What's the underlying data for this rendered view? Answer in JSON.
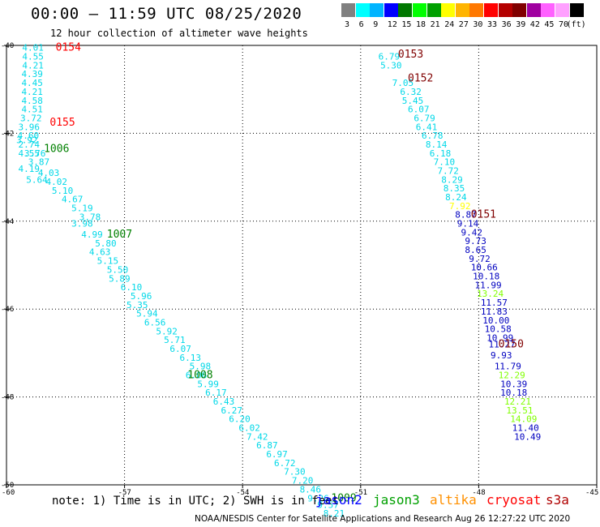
{
  "title": "00:00 – 11:59 UTC 08/25/2020",
  "subtitle": "12 hour collection of altimeter wave heights",
  "legend": {
    "colors": [
      "#808080",
      "#00ffff",
      "#00b4ff",
      "#0000ff",
      "#007800",
      "#00ff00",
      "#00a000",
      "#ffff00",
      "#ffb400",
      "#ff7800",
      "#ff0000",
      "#b40000",
      "#800000",
      "#a000a0",
      "#ff60ff",
      "#ffa0ff",
      "#000000"
    ],
    "labels": [
      "3",
      "6",
      "9",
      "12",
      "15",
      "18",
      "21",
      "24",
      "27",
      "30",
      "33",
      "36",
      "39",
      "42",
      "45",
      "70",
      "(ft)"
    ]
  },
  "chart_data": {
    "type": "scatter",
    "xlim": [
      -60,
      -45
    ],
    "ylim": [
      -50,
      -40
    ],
    "x_ticks": [
      "-60",
      "-57",
      "-54",
      "-51",
      "-48",
      "-45"
    ],
    "y_ticks": [
      "-40",
      "-42",
      "-44",
      "-46",
      "-48",
      "-50"
    ],
    "grid": true,
    "tracks": [
      {
        "points": [
          {
            "x": -59.6,
            "y": -40.05,
            "v": "4.01"
          },
          {
            "x": -59.6,
            "y": -40.25,
            "v": "4.55"
          },
          {
            "x": -59.6,
            "y": -40.45,
            "v": "4.21"
          },
          {
            "x": -59.62,
            "y": -40.65,
            "v": "4.39"
          },
          {
            "x": -59.62,
            "y": -40.85,
            "v": "4.45"
          },
          {
            "x": -59.62,
            "y": -41.05,
            "v": "4.21"
          },
          {
            "x": -59.62,
            "y": -41.25,
            "v": "4.58"
          },
          {
            "x": -59.62,
            "y": -41.45,
            "v": "4.51"
          },
          {
            "x": -59.65,
            "y": -41.65,
            "v": "3.72"
          },
          {
            "x": -59.7,
            "y": -41.85,
            "v": "3.96"
          },
          {
            "x": -59.72,
            "y": -42.05,
            "v": "4.60"
          },
          {
            "x": -59.75,
            "y": -42.15,
            "v": "3.92"
          },
          {
            "x": -59.7,
            "y": -42.25,
            "v": "2.74"
          },
          {
            "x": -59.7,
            "y": -42.45,
            "v": "4.55"
          },
          {
            "x": -59.55,
            "y": -42.45,
            "v": "3.76"
          },
          {
            "x": -59.45,
            "y": -42.65,
            "v": "3.87"
          },
          {
            "x": -59.7,
            "y": -42.8,
            "v": "4.19"
          },
          {
            "x": -59.2,
            "y": -42.9,
            "v": "4.03"
          },
          {
            "x": -59.5,
            "y": -43.05,
            "v": "5.64"
          },
          {
            "x": -59.0,
            "y": -43.1,
            "v": "4.02"
          },
          {
            "x": -58.85,
            "y": -43.3,
            "v": "5.10"
          },
          {
            "x": -58.6,
            "y": -43.5,
            "v": "4.67"
          },
          {
            "x": -58.35,
            "y": -43.7,
            "v": "5.19"
          },
          {
            "x": -58.15,
            "y": -43.9,
            "v": "3.78"
          },
          {
            "x": -58.35,
            "y": -44.05,
            "v": "3.98"
          },
          {
            "x": -58.1,
            "y": -44.3,
            "v": "4.99"
          },
          {
            "x": -57.75,
            "y": -44.5,
            "v": "5.80"
          },
          {
            "x": -57.9,
            "y": -44.7,
            "v": "4.63"
          },
          {
            "x": -57.7,
            "y": -44.9,
            "v": "5.15"
          },
          {
            "x": -57.45,
            "y": -45.1,
            "v": "5.50"
          },
          {
            "x": -57.4,
            "y": -45.3,
            "v": "5.89"
          },
          {
            "x": -57.1,
            "y": -45.5,
            "v": "6.10"
          },
          {
            "x": -56.85,
            "y": -45.7,
            "v": "5.96"
          },
          {
            "x": -56.95,
            "y": -45.9,
            "v": "5.35"
          },
          {
            "x": -56.7,
            "y": -46.1,
            "v": "5.94"
          },
          {
            "x": -56.5,
            "y": -46.3,
            "v": "6.56"
          },
          {
            "x": -56.2,
            "y": -46.5,
            "v": "5.92"
          },
          {
            "x": -56.0,
            "y": -46.7,
            "v": "5.71"
          },
          {
            "x": -55.85,
            "y": -46.9,
            "v": "6.07"
          },
          {
            "x": -55.6,
            "y": -47.1,
            "v": "6.13"
          },
          {
            "x": -55.35,
            "y": -47.3,
            "v": "5.98"
          },
          {
            "x": -55.45,
            "y": -47.5,
            "v": "6.06"
          },
          {
            "x": -55.15,
            "y": -47.7,
            "v": "5.99"
          },
          {
            "x": -54.95,
            "y": -47.9,
            "v": "6.17"
          },
          {
            "x": -54.75,
            "y": -48.1,
            "v": "6.43"
          },
          {
            "x": -54.55,
            "y": -48.3,
            "v": "6.27"
          },
          {
            "x": -54.35,
            "y": -48.5,
            "v": "6.20"
          },
          {
            "x": -54.1,
            "y": -48.7,
            "v": "6.02"
          },
          {
            "x": -53.9,
            "y": -48.9,
            "v": "7.42"
          },
          {
            "x": -53.65,
            "y": -49.1,
            "v": "6.87"
          },
          {
            "x": -53.4,
            "y": -49.3,
            "v": "6.97"
          },
          {
            "x": -53.2,
            "y": -49.5,
            "v": "6.72"
          },
          {
            "x": -52.95,
            "y": -49.7,
            "v": "7.30"
          },
          {
            "x": -52.75,
            "y": -49.9,
            "v": "7.20"
          },
          {
            "x": -52.55,
            "y": -50.1,
            "v": "8.46"
          },
          {
            "x": -52.35,
            "y": -50.3,
            "v": "9.26"
          },
          {
            "x": -52.1,
            "y": -50.45,
            "v": "9.57"
          },
          {
            "x": -51.95,
            "y": -50.65,
            "v": "8.21"
          }
        ],
        "times": [
          {
            "x": -58.75,
            "y": -40.05,
            "t": "0154",
            "c": "#ff0000"
          },
          {
            "x": -58.9,
            "y": -41.75,
            "t": "0155",
            "c": "#ff0000"
          },
          {
            "x": -59.05,
            "y": -42.35,
            "t": "1006",
            "c": "#008000"
          },
          {
            "x": -57.45,
            "y": -44.3,
            "t": "1007",
            "c": "#008000"
          },
          {
            "x": -55.4,
            "y": -47.5,
            "t": "1008",
            "c": "#008000"
          },
          {
            "x": -51.75,
            "y": -50.3,
            "t": "1009",
            "c": "#008000"
          }
        ]
      },
      {
        "points": [
          {
            "x": -50.55,
            "y": -40.25,
            "v": "6.79"
          },
          {
            "x": -50.5,
            "y": -40.45,
            "v": "5.30"
          },
          {
            "x": -50.2,
            "y": -40.85,
            "v": "7.05"
          },
          {
            "x": -50.0,
            "y": -41.05,
            "v": "6.32"
          },
          {
            "x": -49.95,
            "y": -41.25,
            "v": "5.45"
          },
          {
            "x": -49.8,
            "y": -41.45,
            "v": "6.07"
          },
          {
            "x": -49.65,
            "y": -41.65,
            "v": "6.79"
          },
          {
            "x": -49.6,
            "y": -41.85,
            "v": "6.41"
          },
          {
            "x": -49.45,
            "y": -42.05,
            "v": "6.78"
          },
          {
            "x": -49.35,
            "y": -42.25,
            "v": "8.14"
          },
          {
            "x": -49.25,
            "y": -42.45,
            "v": "6.18"
          },
          {
            "x": -49.15,
            "y": -42.65,
            "v": "7.10"
          },
          {
            "x": -49.05,
            "y": -42.85,
            "v": "7.72"
          },
          {
            "x": -48.95,
            "y": -43.05,
            "v": "8.29"
          },
          {
            "x": -48.9,
            "y": -43.25,
            "v": "8.35"
          },
          {
            "x": -48.85,
            "y": -43.45,
            "v": "8.24"
          },
          {
            "x": -48.75,
            "y": -43.65,
            "v": "7.92",
            "c": "#ffff00"
          },
          {
            "x": -48.6,
            "y": -43.85,
            "v": "8.87",
            "c": "#0000c0"
          },
          {
            "x": -48.55,
            "y": -44.05,
            "v": "9.14",
            "c": "#0000c0"
          },
          {
            "x": -48.45,
            "y": -44.25,
            "v": "9.42",
            "c": "#0000c0"
          },
          {
            "x": -48.35,
            "y": -44.45,
            "v": "9.73",
            "c": "#0000c0"
          },
          {
            "x": -48.35,
            "y": -44.65,
            "v": "8.65",
            "c": "#0000c0"
          },
          {
            "x": -48.25,
            "y": -44.85,
            "v": "9.72",
            "c": "#0000c0"
          },
          {
            "x": -48.2,
            "y": -45.05,
            "v": "10.66",
            "c": "#0000c0"
          },
          {
            "x": -48.15,
            "y": -45.25,
            "v": "10.18",
            "c": "#0000c0"
          },
          {
            "x": -48.1,
            "y": -45.45,
            "v": "11.99",
            "c": "#0000c0"
          },
          {
            "x": -48.05,
            "y": -45.65,
            "v": "13.24",
            "c": "#80ff00"
          },
          {
            "x": -47.95,
            "y": -45.85,
            "v": "11.57",
            "c": "#0000c0"
          },
          {
            "x": -47.95,
            "y": -46.05,
            "v": "11.83",
            "c": "#0000c0"
          },
          {
            "x": -47.9,
            "y": -46.25,
            "v": "10.00",
            "c": "#0000c0"
          },
          {
            "x": -47.85,
            "y": -46.45,
            "v": "10.58",
            "c": "#0000c0"
          },
          {
            "x": -47.8,
            "y": -46.65,
            "v": "10.99",
            "c": "#0000c0"
          },
          {
            "x": -47.75,
            "y": -46.8,
            "v": "11.27",
            "c": "#0000c0"
          },
          {
            "x": -47.7,
            "y": -47.05,
            "v": "9.93",
            "c": "#0000c0"
          },
          {
            "x": -47.6,
            "y": -47.3,
            "v": "11.79",
            "c": "#0000c0"
          },
          {
            "x": -47.5,
            "y": -47.5,
            "v": "12.29",
            "c": "#80ff00"
          },
          {
            "x": -47.45,
            "y": -47.7,
            "v": "10.39",
            "c": "#0000c0"
          },
          {
            "x": -47.45,
            "y": -47.9,
            "v": "10.18",
            "c": "#0000c0"
          },
          {
            "x": -47.35,
            "y": -48.1,
            "v": "12.21",
            "c": "#80ff00"
          },
          {
            "x": -47.3,
            "y": -48.3,
            "v": "13.51",
            "c": "#80ff00"
          },
          {
            "x": -47.2,
            "y": -48.5,
            "v": "14.09",
            "c": "#80ff00"
          },
          {
            "x": -47.15,
            "y": -48.7,
            "v": "11.40",
            "c": "#0000c0"
          },
          {
            "x": -47.1,
            "y": -48.9,
            "v": "10.49",
            "c": "#0000c0"
          }
        ],
        "times": [
          {
            "x": -50.05,
            "y": -40.2,
            "t": "0153",
            "c": "#800000"
          },
          {
            "x": -49.8,
            "y": -40.75,
            "t": "0152",
            "c": "#800000"
          },
          {
            "x": -48.2,
            "y": -43.85,
            "t": "0151",
            "c": "#800000"
          },
          {
            "x": -47.5,
            "y": -46.8,
            "t": "0150",
            "c": "#800000"
          }
        ]
      }
    ]
  },
  "note": "note: 1) Time is in UTC; 2) SWH is in feet",
  "satellites": [
    {
      "name": "jason2",
      "color": "#0000ff"
    },
    {
      "name": "jason3",
      "color": "#00a000"
    },
    {
      "name": "altika",
      "color": "#ff9000"
    },
    {
      "name": "cryosat",
      "color": "#ff0000"
    },
    {
      "name": "s3a",
      "color": "#b00000"
    }
  ],
  "footer": "NOAA/NESDIS Center for Satellite Applications and Research   Aug 26 12:27:22 UTC 2020"
}
